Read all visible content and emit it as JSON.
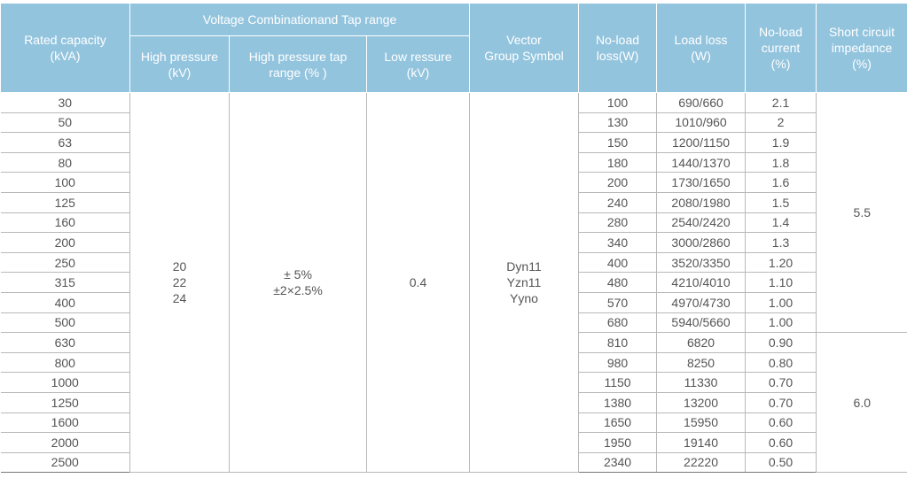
{
  "header": {
    "rated_capacity": "Rated capacity\n(kVA)",
    "voltage_group": "Voltage Combinationand Tap range",
    "high_pressure": "High pressure\n(kV)",
    "high_pressure_tap": "High pressure tap\nrange (% )",
    "low_pressure": "Low ressure\n(kV)",
    "vector_group": "Vector\nGroup Symbol",
    "no_load_loss": "No-load\nloss(W)",
    "load_loss": "Load loss\n(W)",
    "no_load_current": "No-load\ncurrent\n(%)",
    "short_circuit": "Short circuit\nimpedance\n(%)"
  },
  "merged": {
    "high_pressure": "20\n22\n24",
    "tap_range": "± 5%\n±2×2.5%",
    "low_pressure": "0.4",
    "vector_group": "Dyn11\nYzn11\nYyno",
    "impedance_a": "5.5",
    "impedance_b": "6.0"
  },
  "rows": [
    {
      "capacity": "30",
      "no_load_loss": "100",
      "load_loss": "690/660",
      "current": "2.1"
    },
    {
      "capacity": "50",
      "no_load_loss": "130",
      "load_loss": "1010/960",
      "current": "2"
    },
    {
      "capacity": "63",
      "no_load_loss": "150",
      "load_loss": "1200/1150",
      "current": "1.9"
    },
    {
      "capacity": "80",
      "no_load_loss": "180",
      "load_loss": "1440/1370",
      "current": "1.8"
    },
    {
      "capacity": "100",
      "no_load_loss": "200",
      "load_loss": "1730/1650",
      "current": "1.6"
    },
    {
      "capacity": "125",
      "no_load_loss": "240",
      "load_loss": "2080/1980",
      "current": "1.5"
    },
    {
      "capacity": "160",
      "no_load_loss": "280",
      "load_loss": "2540/2420",
      "current": "1.4"
    },
    {
      "capacity": "200",
      "no_load_loss": "340",
      "load_loss": "3000/2860",
      "current": "1.3"
    },
    {
      "capacity": "250",
      "no_load_loss": "400",
      "load_loss": "3520/3350",
      "current": "1.20"
    },
    {
      "capacity": "315",
      "no_load_loss": "480",
      "load_loss": "4210/4010",
      "current": "1.10"
    },
    {
      "capacity": "400",
      "no_load_loss": "570",
      "load_loss": "4970/4730",
      "current": "1.00"
    },
    {
      "capacity": "500",
      "no_load_loss": "680",
      "load_loss": "5940/5660",
      "current": "1.00"
    },
    {
      "capacity": "630",
      "no_load_loss": "810",
      "load_loss": "6820",
      "current": "0.90"
    },
    {
      "capacity": "800",
      "no_load_loss": "980",
      "load_loss": "8250",
      "current": "0.80"
    },
    {
      "capacity": "1000",
      "no_load_loss": "1150",
      "load_loss": "11330",
      "current": "0.70"
    },
    {
      "capacity": "1250",
      "no_load_loss": "1380",
      "load_loss": "13200",
      "current": "0.70"
    },
    {
      "capacity": "1600",
      "no_load_loss": "1650",
      "load_loss": "15950",
      "current": "0.60"
    },
    {
      "capacity": "2000",
      "no_load_loss": "1950",
      "load_loss": "19140",
      "current": "0.60"
    },
    {
      "capacity": "2500",
      "no_load_loss": "2340",
      "load_loss": "22220",
      "current": "0.50"
    }
  ]
}
